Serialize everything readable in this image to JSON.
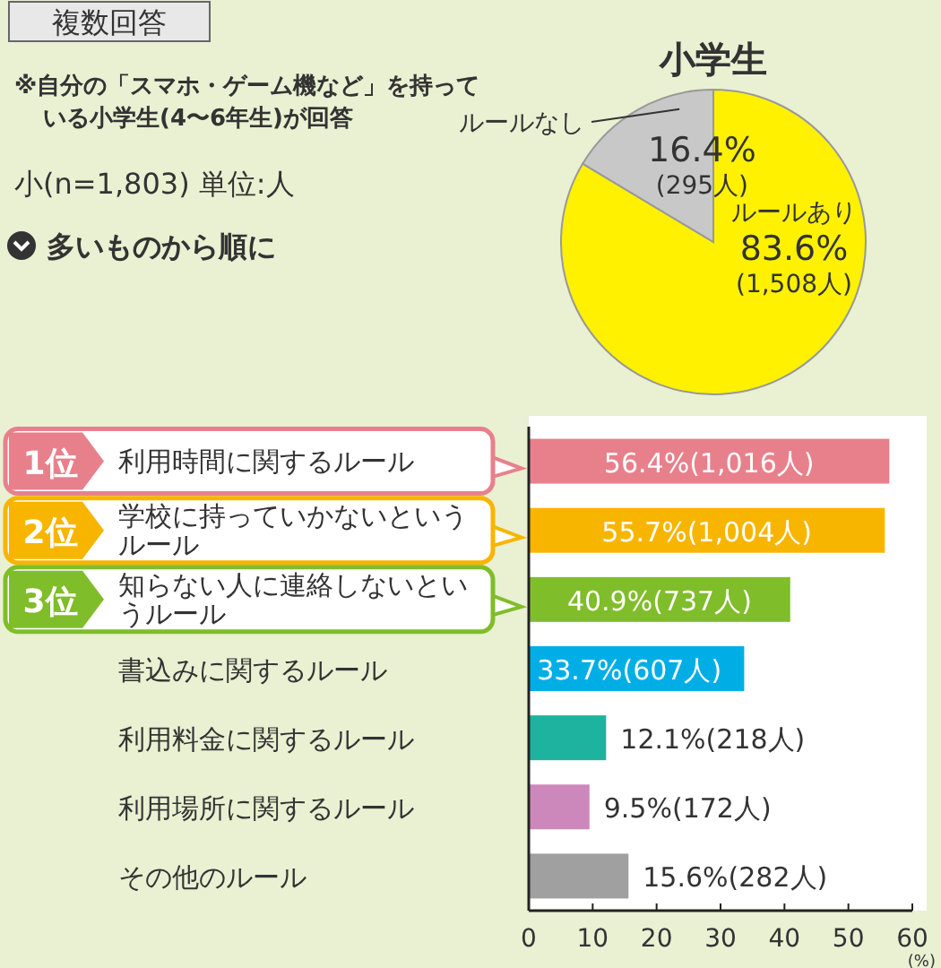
{
  "chart_data": [
    {
      "type": "pie",
      "title": "小学生",
      "categories": [
        "ルールあり",
        "ルールなし"
      ],
      "values": [
        83.6,
        16.4
      ],
      "colors": [
        "#fff100",
        "#c8c8c8"
      ],
      "value_labels": [
        "83.6%(1,508人)",
        "16.4%(295人)"
      ],
      "annotations": [
        "※自分の「スマホ・ゲーム機など」を持っている小学生(4〜6年生)が回答",
        "小(n=1,803) 単位:人"
      ]
    },
    {
      "type": "bar",
      "orientation": "horizontal",
      "categories": [
        "利用時間に関するルール",
        "学校に持っていかないというルール",
        "知らない人に連絡しないというルール",
        "書込みに関するルール",
        "利用料金に関するルール",
        "利用場所に関するルール",
        "その他のルール"
      ],
      "values": [
        56.4,
        55.7,
        40.9,
        33.7,
        12.1,
        9.5,
        15.6
      ],
      "colors": [
        "#e8808c",
        "#f7b500",
        "#80bd2a",
        "#00aee6",
        "#1db39e",
        "#cc88bb",
        "#a0a0a0"
      ],
      "value_labels": [
        "56.4%(1,016人)",
        "55.7%(1,004人)",
        "40.9%(737人)",
        "33.7%(607人)",
        "12.1%(218人)",
        "9.5%(172人)",
        "15.6%(282人)"
      ],
      "xlim": [
        0,
        60
      ],
      "xticks": [
        0,
        10,
        20,
        30,
        40,
        50,
        60
      ],
      "xlabel": "(%)",
      "annotations": [
        "複数回答",
        "多いものから順に",
        "1位",
        "2位",
        "3位"
      ]
    }
  ]
}
